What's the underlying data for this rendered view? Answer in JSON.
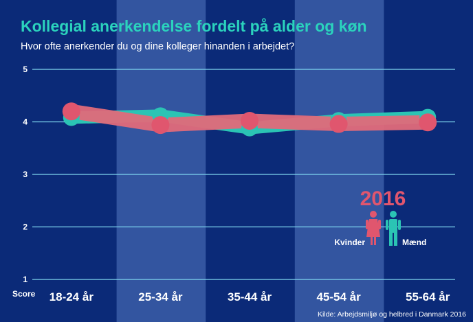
{
  "chart_data": {
    "type": "line",
    "title": "Kollegial anerkendelse fordelt på alder og køn",
    "subtitle": "Hvor ofte anerkender du og dine kolleger hinanden i arbejdet?",
    "ylabel": "Score",
    "xlabel": "",
    "ylim": [
      1,
      5
    ],
    "yticks": [
      "1",
      "2",
      "3",
      "4",
      "5"
    ],
    "categories": [
      "18-24 år",
      "25-34 år",
      "35-44 år",
      "45-54 år",
      "55-64 år"
    ],
    "series": [
      {
        "name": "Mænd",
        "color": "#2bc4b4",
        "values": [
          4.08,
          4.12,
          3.88,
          4.03,
          4.09
        ]
      },
      {
        "name": "Kvinder",
        "color": "#e0566e",
        "values": [
          4.2,
          3.94,
          4.02,
          3.96,
          3.99
        ]
      }
    ],
    "grid": true,
    "legend": {
      "year": "2016",
      "women_label": "Kvinder",
      "men_label": "Mænd",
      "placement": "right"
    },
    "source": "Kilde: Arbejdsmiljø og helbred i Danmark 2016"
  },
  "colors": {
    "background": "#0b2a78",
    "band": "#3355a0",
    "gridline": "#7fd8ef",
    "title": "#2bd3bd",
    "men": "#2bc4b4",
    "women": "#e0566e",
    "women_line": "#e06a7a"
  }
}
